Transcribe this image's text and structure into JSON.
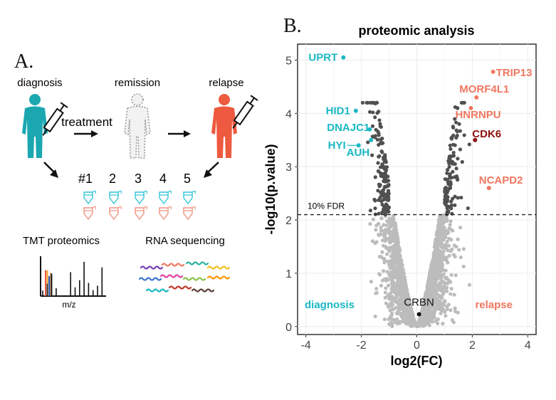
{
  "panel_a": {
    "label": "A.",
    "stages": {
      "diagnosis": "diagnosis",
      "remission": "remission",
      "relapse": "relapse"
    },
    "treatment_label": "treatment",
    "patients": [
      "#1",
      "2",
      "3",
      "4",
      "5"
    ],
    "methods": {
      "proteomics": "TMT proteomics",
      "rnaseq": "RNA sequencing"
    },
    "mz_label": "m/z",
    "colors": {
      "diagnosis": "#1aa7b0",
      "relapse": "#ee5a40",
      "remission": "#9a9a9a",
      "tube_diag": "#33c4d8",
      "tube_rel": "#f2937f"
    },
    "spectrum": {
      "black": [
        0.14,
        0.31,
        0.56,
        0.2,
        0.6,
        0.22,
        0.4,
        0.86,
        0.33,
        0.15,
        0.26,
        0.72,
        0.28
      ],
      "colored": [
        {
          "color": "#ee5a40",
          "value": 0.65
        },
        {
          "color": "#f09a20",
          "value": 0.65
        },
        {
          "color": "#2b5db5",
          "value": 0.5
        },
        {
          "color": "#8a5a2b",
          "value": 0.58
        }
      ]
    }
  },
  "panel_b": {
    "label": "B.",
    "threshold_label": "10% FDR",
    "group_labels": {
      "left": "diagnosis",
      "right": "relapse"
    },
    "colors": {
      "diagnosis": "#1ab8c4",
      "relapse": "#f07860",
      "cdk6": "#8b0f0f",
      "significant": "#505050",
      "nonsignificant": "#bcbcbc",
      "threshold": "#222222"
    }
  },
  "chart_data": {
    "type": "scatter",
    "title": "proteomic analysis",
    "xlabel": "log2(FC)",
    "ylabel": "-log10(p.value)",
    "xlim": [
      -4.3,
      4.3
    ],
    "ylim": [
      -0.15,
      5.3
    ],
    "xticks": [
      -4,
      -2,
      0,
      2,
      4
    ],
    "yticks": [
      0,
      1,
      2,
      3,
      4,
      5
    ],
    "fdr_threshold": 2.1,
    "grid": true,
    "labeled_points": [
      {
        "name": "UPRT",
        "x": -2.65,
        "y": 5.05,
        "group": "diagnosis"
      },
      {
        "name": "HID1",
        "x": -2.2,
        "y": 4.05,
        "group": "diagnosis"
      },
      {
        "name": "DNAJC1",
        "x": -1.7,
        "y": 3.7,
        "group": "diagnosis"
      },
      {
        "name": "HYI",
        "x": -2.1,
        "y": 3.4,
        "group": "diagnosis"
      },
      {
        "name": "AUH",
        "x": -1.65,
        "y": 3.5,
        "group": "diagnosis"
      },
      {
        "name": "TRIP13",
        "x": 2.75,
        "y": 4.78,
        "group": "relapse"
      },
      {
        "name": "MORF4L1",
        "x": 2.15,
        "y": 4.3,
        "group": "relapse"
      },
      {
        "name": "HNRNPU",
        "x": 1.95,
        "y": 4.1,
        "group": "relapse"
      },
      {
        "name": "CDK6",
        "x": 2.1,
        "y": 3.5,
        "group": "cdk6"
      },
      {
        "name": "NCAPD2",
        "x": 2.6,
        "y": 2.6,
        "group": "relapse"
      },
      {
        "name": "CRBN",
        "x": 0.08,
        "y": 0.23,
        "group": "neutral"
      }
    ],
    "background_points": {
      "n_total": 2400,
      "distribution": "volcano: p-value rises with |log2(FC)|; ~300 points exceed the 10% FDR line"
    }
  }
}
